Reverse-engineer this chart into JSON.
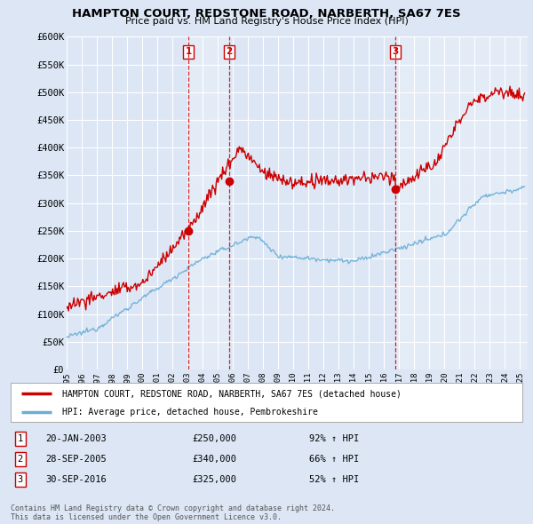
{
  "title": "HAMPTON COURT, REDSTONE ROAD, NARBERTH, SA67 7ES",
  "subtitle": "Price paid vs. HM Land Registry's House Price Index (HPI)",
  "ylim": [
    0,
    600000
  ],
  "yticks": [
    0,
    50000,
    100000,
    150000,
    200000,
    250000,
    300000,
    350000,
    400000,
    450000,
    500000,
    550000,
    600000
  ],
  "ytick_labels": [
    "£0",
    "£50K",
    "£100K",
    "£150K",
    "£200K",
    "£250K",
    "£300K",
    "£350K",
    "£400K",
    "£450K",
    "£500K",
    "£550K",
    "£600K"
  ],
  "background_color": "#dce6f5",
  "plot_bg_color": "#dce6f5",
  "grid_color": "#ffffff",
  "sale_color": "#cc0000",
  "hpi_color": "#6baed6",
  "vline_color": "#cc0000",
  "sale_points": [
    {
      "date": 2003.05,
      "price": 250000,
      "label": "1"
    },
    {
      "date": 2005.75,
      "price": 340000,
      "label": "2"
    },
    {
      "date": 2016.75,
      "price": 325000,
      "label": "3"
    }
  ],
  "vline_dates": [
    2003.05,
    2005.75,
    2016.75
  ],
  "legend_items": [
    {
      "label": "HAMPTON COURT, REDSTONE ROAD, NARBERTH, SA67 7ES (detached house)",
      "color": "#cc0000"
    },
    {
      "label": "HPI: Average price, detached house, Pembrokeshire",
      "color": "#6baed6"
    }
  ],
  "table_rows": [
    {
      "num": "1",
      "date": "20-JAN-2003",
      "price": "£250,000",
      "pct": "92% ↑ HPI"
    },
    {
      "num": "2",
      "date": "28-SEP-2005",
      "price": "£340,000",
      "pct": "66% ↑ HPI"
    },
    {
      "num": "3",
      "date": "30-SEP-2016",
      "price": "£325,000",
      "pct": "52% ↑ HPI"
    }
  ],
  "footer": "Contains HM Land Registry data © Crown copyright and database right 2024.\nThis data is licensed under the Open Government Licence v3.0.",
  "xmin": 1995.0,
  "xmax": 2025.5
}
